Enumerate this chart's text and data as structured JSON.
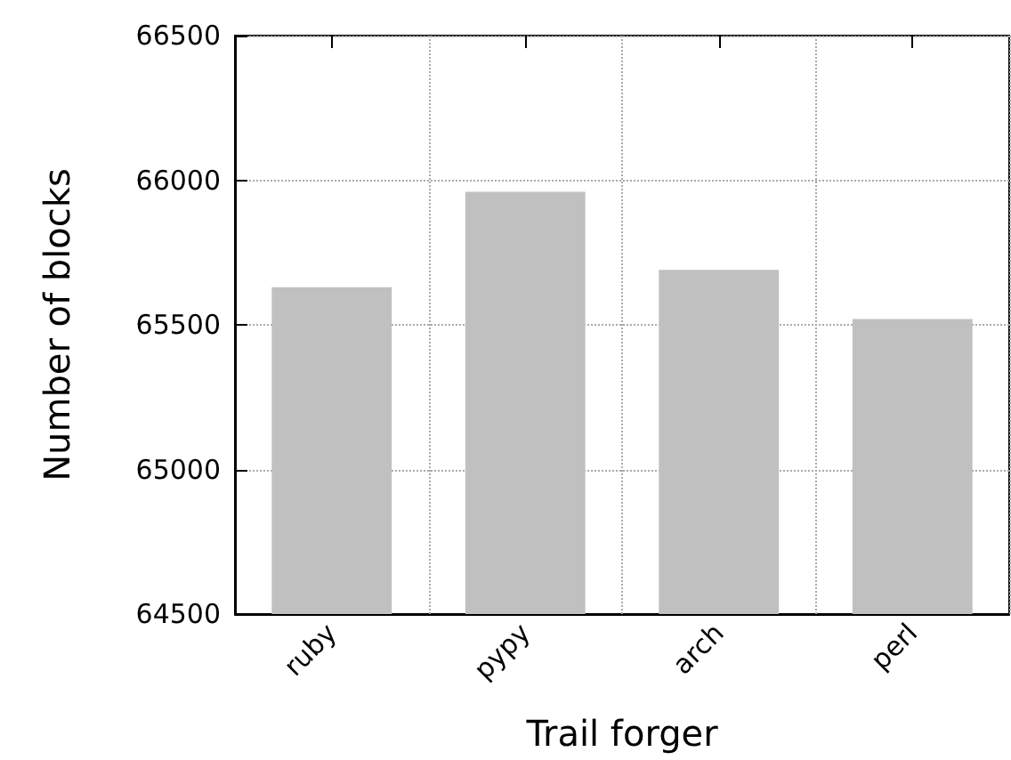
{
  "chart_data": {
    "type": "bar",
    "xlabel": "Trail forger",
    "ylabel": "Number of blocks",
    "categories": [
      "ruby",
      "pypy",
      "arch",
      "perl"
    ],
    "values": [
      65630,
      65960,
      65690,
      65520
    ],
    "color": "#c0c0c0",
    "ylim": [
      64500,
      66500
    ],
    "yticks": [
      64500,
      65000,
      65500,
      66000,
      66500
    ],
    "grid": true
  }
}
